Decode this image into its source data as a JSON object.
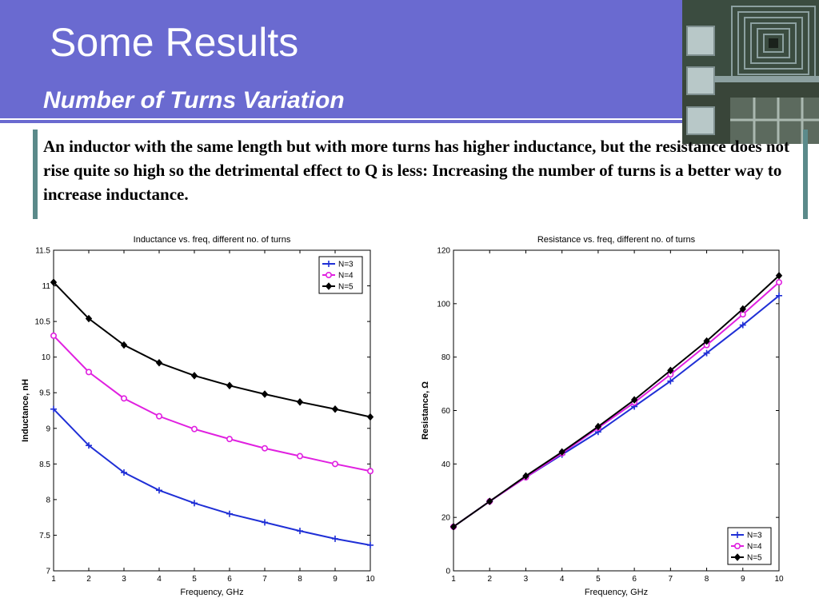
{
  "slide": {
    "title": "Some Results",
    "subtitle": "Number of Turns Variation",
    "body": "An inductor with the same length but with more turns has higher inductance, but the resistance does not rise quite so high so the detrimental effect to Q is less: Increasing the number of turns is a better way to increase inductance.",
    "header_color": "#6a6ad0",
    "accent_bar_color": "#5b8a8a"
  },
  "chart_data": [
    {
      "type": "line",
      "title": "Inductance vs. freq, different no. of turns",
      "xlabel": "Frequency, GHz",
      "ylabel": "Inductance, nH",
      "x": [
        1,
        2,
        3,
        4,
        5,
        6,
        7,
        8,
        9,
        10
      ],
      "xlim": [
        1,
        10
      ],
      "ylim": [
        7,
        11.5
      ],
      "xticks": [
        "1",
        "2",
        "3",
        "4",
        "5",
        "6",
        "7",
        "8",
        "9",
        "10"
      ],
      "yticks": [
        "7",
        "7.5",
        "8",
        "8.5",
        "9",
        "9.5",
        "10",
        "10.5",
        "11",
        "11.5"
      ],
      "legend_position": "top-right",
      "series": [
        {
          "name": "N=3",
          "color": "#1f2fd6",
          "marker": "plus",
          "values": [
            9.27,
            8.76,
            8.38,
            8.13,
            7.95,
            7.8,
            7.68,
            7.56,
            7.45,
            7.36
          ]
        },
        {
          "name": "N=4",
          "color": "#e020e0",
          "marker": "circle",
          "values": [
            10.3,
            9.79,
            9.42,
            9.17,
            8.99,
            8.85,
            8.72,
            8.61,
            8.5,
            8.4
          ]
        },
        {
          "name": "N=5",
          "color": "#000000",
          "marker": "diamond",
          "values": [
            11.05,
            10.54,
            10.17,
            9.92,
            9.74,
            9.6,
            9.48,
            9.37,
            9.27,
            9.16
          ]
        }
      ]
    },
    {
      "type": "line",
      "title": "Resistance vs. freq, different no. of turns",
      "xlabel": "Frequency, GHz",
      "ylabel": "Resistance, Ω",
      "x": [
        1,
        2,
        3,
        4,
        5,
        6,
        7,
        8,
        9,
        10
      ],
      "xlim": [
        1,
        10
      ],
      "ylim": [
        0,
        120
      ],
      "xticks": [
        "1",
        "2",
        "3",
        "4",
        "5",
        "6",
        "7",
        "8",
        "9",
        "10"
      ],
      "yticks": [
        "0",
        "20",
        "40",
        "60",
        "80",
        "100",
        "120"
      ],
      "legend_position": "bottom-right",
      "series": [
        {
          "name": "N=3",
          "color": "#1f2fd6",
          "marker": "plus",
          "values": [
            16.5,
            26,
            35,
            43.5,
            52,
            61.5,
            71,
            81.5,
            92,
            103
          ]
        },
        {
          "name": "N=4",
          "color": "#e020e0",
          "marker": "circle",
          "values": [
            16.5,
            26,
            35,
            44,
            53.5,
            63,
            73.5,
            84.5,
            96,
            108
          ]
        },
        {
          "name": "N=5",
          "color": "#000000",
          "marker": "diamond",
          "values": [
            16.5,
            26,
            35.5,
            44.5,
            54,
            64,
            75,
            86,
            98,
            110.5
          ]
        }
      ]
    }
  ]
}
